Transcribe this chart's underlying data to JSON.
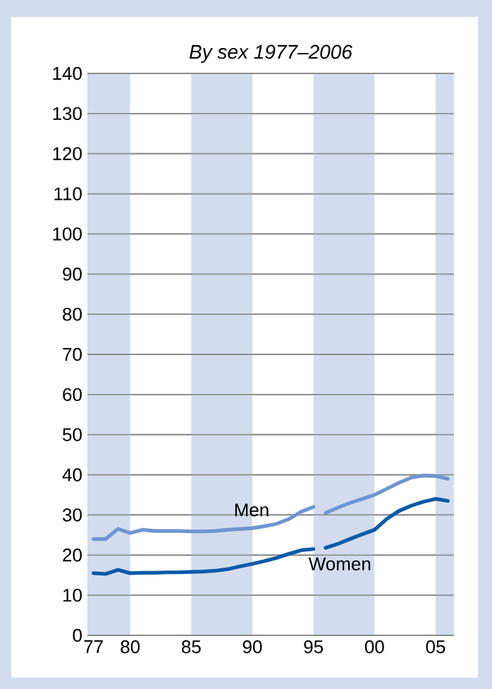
{
  "chart_data": {
    "type": "line",
    "title": "*By sex 1977–2006*",
    "x": [
      1977,
      1978,
      1979,
      1980,
      1981,
      1982,
      1983,
      1984,
      1985,
      1986,
      1987,
      1988,
      1989,
      1990,
      1991,
      1992,
      1993,
      1994,
      1995,
      1995.5,
      1996,
      1997,
      1998,
      1999,
      2000,
      2001,
      2002,
      2003,
      2004,
      2005,
      2006
    ],
    "series": [
      {
        "name": "Men",
        "color": "#6f95d2",
        "values": [
          24,
          24,
          26.5,
          25.5,
          26.3,
          26,
          26,
          26,
          25.9,
          25.9,
          26,
          26.3,
          26.5,
          26.7,
          27.2,
          27.8,
          29,
          30.8,
          32,
          null,
          30.5,
          31.8,
          33,
          34,
          35,
          36.5,
          38,
          39.3,
          39.8,
          39.7,
          39
        ]
      },
      {
        "name": "Women",
        "color": "#0a5aa8",
        "values": [
          15.5,
          15.3,
          16.3,
          15.5,
          15.6,
          15.6,
          15.7,
          15.7,
          15.8,
          15.9,
          16.1,
          16.5,
          17.2,
          17.8,
          18.5,
          19.3,
          20.3,
          21.2,
          21.5,
          null,
          21.8,
          22.8,
          24,
          25.2,
          26.3,
          29,
          31,
          32.3,
          33.3,
          34,
          33.5
        ]
      }
    ],
    "xlim": [
      1976.5,
      2006.5
    ],
    "xticks": [
      {
        "value": 1977,
        "label": "77"
      },
      {
        "value": 1980,
        "label": "80"
      },
      {
        "value": 1985,
        "label": "85"
      },
      {
        "value": 1990,
        "label": "90"
      },
      {
        "value": 1995,
        "label": "95"
      },
      {
        "value": 2000,
        "label": "00"
      },
      {
        "value": 2005,
        "label": "05"
      }
    ],
    "ylim": [
      0,
      140
    ],
    "yticks": [
      0,
      10,
      20,
      30,
      40,
      50,
      60,
      70,
      80,
      90,
      100,
      110,
      120,
      130,
      140
    ],
    "bands": [
      {
        "axis": "x",
        "from": 1976.5,
        "to": 1980,
        "color": "#d3dcee"
      },
      {
        "axis": "x",
        "from": 1985,
        "to": 1990,
        "color": "#d3dcee"
      },
      {
        "axis": "x",
        "from": 1995,
        "to": 2000,
        "color": "#d3dcee"
      },
      {
        "axis": "x",
        "from": 2005,
        "to": 2006.5,
        "color": "#d3dcee"
      }
    ],
    "grid": "y",
    "marker": "none",
    "line_style": "solid"
  }
}
